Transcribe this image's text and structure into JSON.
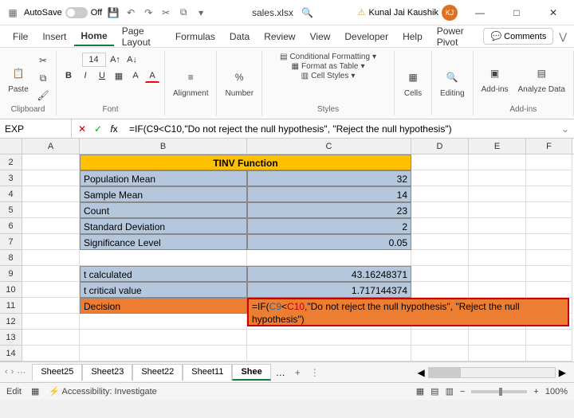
{
  "titlebar": {
    "autosave_label": "AutoSave",
    "autosave_state": "Off",
    "filename": "sales.xlsx",
    "username": "Kunal Jai Kaushik",
    "user_initials": "KJ"
  },
  "menus": [
    "File",
    "Insert",
    "Home",
    "Page Layout",
    "Formulas",
    "Data",
    "Review",
    "View",
    "Developer",
    "Help",
    "Power Pivot"
  ],
  "active_menu": "Home",
  "comments_btn": "Comments",
  "ribbon": {
    "clipboard": {
      "label": "Clipboard",
      "paste": "Paste"
    },
    "font": {
      "label": "Font",
      "size": "14",
      "bold": "B",
      "italic": "I",
      "underline": "U"
    },
    "alignment": {
      "label": "Alignment",
      "btn": "Alignment"
    },
    "number": {
      "label": "Number",
      "btn": "Number",
      "pct": "%"
    },
    "styles": {
      "label": "Styles",
      "cond": "Conditional Formatting",
      "table": "Format as Table",
      "cell": "Cell Styles"
    },
    "cells": {
      "label": "",
      "btn": "Cells"
    },
    "editing": {
      "label": "",
      "btn": "Editing"
    },
    "addins": {
      "label": "Add-ins",
      "addins": "Add-ins",
      "analyze": "Analyze Data"
    }
  },
  "formula_bar": {
    "namebox": "EXP",
    "formula": "=IF(C9<C10,\"Do not reject the null hypothesis\", \"Reject the null hypothesis\")"
  },
  "columns": {
    "A": 72,
    "B": 210,
    "C": 206,
    "D": 72,
    "E": 72,
    "F": 58
  },
  "col_labels": [
    "A",
    "B",
    "C",
    "D",
    "E",
    "F"
  ],
  "row_labels": [
    "2",
    "3",
    "4",
    "5",
    "6",
    "7",
    "8",
    "9",
    "10",
    "11",
    "12",
    "13",
    "14"
  ],
  "sheet": {
    "banner": "TINV Function",
    "rows": [
      {
        "label": "Population Mean",
        "value": "32"
      },
      {
        "label": "Sample Mean",
        "value": "14"
      },
      {
        "label": "Count",
        "value": "23"
      },
      {
        "label": "Standard Deviation",
        "value": "2"
      },
      {
        "label": "Significance Level",
        "value": "0.05"
      }
    ],
    "calc": [
      {
        "label": "t calculated",
        "value": "43.16248371"
      },
      {
        "label": "t critical value",
        "value": "1.717144374"
      }
    ],
    "decision_label": "Decision",
    "formula_text_pre": "=IF(",
    "formula_c9": "C9",
    "formula_lt": "<",
    "formula_c10": "C10",
    "formula_text_post": ",\"Do not reject the null hypothesis\", \"Reject the null hypothesis\")"
  },
  "tabs": [
    "Sheet25",
    "Sheet23",
    "Sheet22",
    "Sheet11",
    "Shee"
  ],
  "tab_ellipsis": "…",
  "statusbar": {
    "mode": "Edit",
    "accessibility": "Accessibility: Investigate",
    "zoom": "100%"
  },
  "colors": {
    "banner": "#ffc000",
    "label_bg": "#b4c7dc",
    "orange": "#ed7d31",
    "grid_border": "#888888"
  }
}
